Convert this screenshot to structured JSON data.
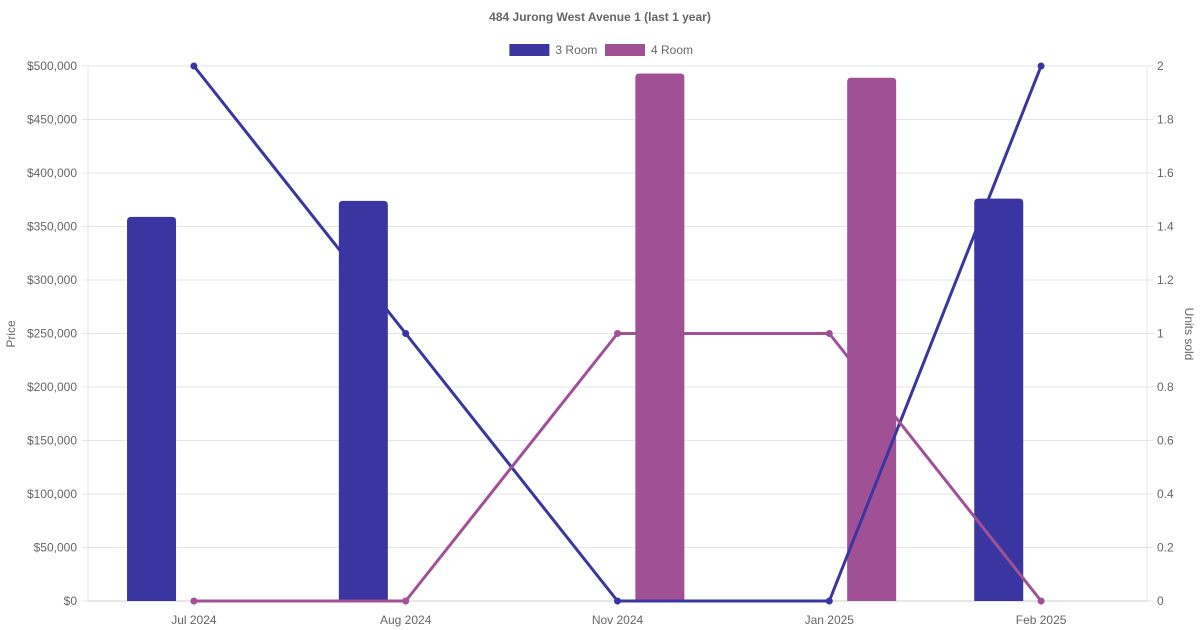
{
  "chart_data": {
    "type": "bar",
    "title": "484 Jurong West Avenue 1 (last 1 year)",
    "categories": [
      "Jul 2024",
      "Aug 2024",
      "Nov 2024",
      "Jan 2025",
      "Feb 2025"
    ],
    "y_left": {
      "label": "Price",
      "min": 0,
      "max": 500000,
      "ticks": [
        "$0",
        "$50,000",
        "$100,000",
        "$150,000",
        "$200,000",
        "$250,000",
        "$300,000",
        "$350,000",
        "$400,000",
        "$450,000",
        "$500,000"
      ]
    },
    "y_right": {
      "label": "Units sold",
      "min": 0,
      "max": 2,
      "ticks": [
        "0",
        "0.2",
        "0.4",
        "0.6",
        "0.8",
        "1",
        "1.2",
        "1.4",
        "1.6",
        "1.8",
        "2"
      ]
    },
    "grid": true,
    "legend_position": "top-center",
    "series": [
      {
        "name": "3 Room",
        "color": "#3a35a0",
        "price": [
          359000,
          374000,
          null,
          null,
          376000
        ],
        "units_sold": [
          2,
          1,
          0,
          0,
          2
        ]
      },
      {
        "name": "4 Room",
        "color": "#a05195",
        "price": [
          null,
          null,
          493000,
          489000,
          null
        ],
        "units_sold": [
          0,
          0,
          1,
          1,
          0
        ]
      }
    ]
  }
}
